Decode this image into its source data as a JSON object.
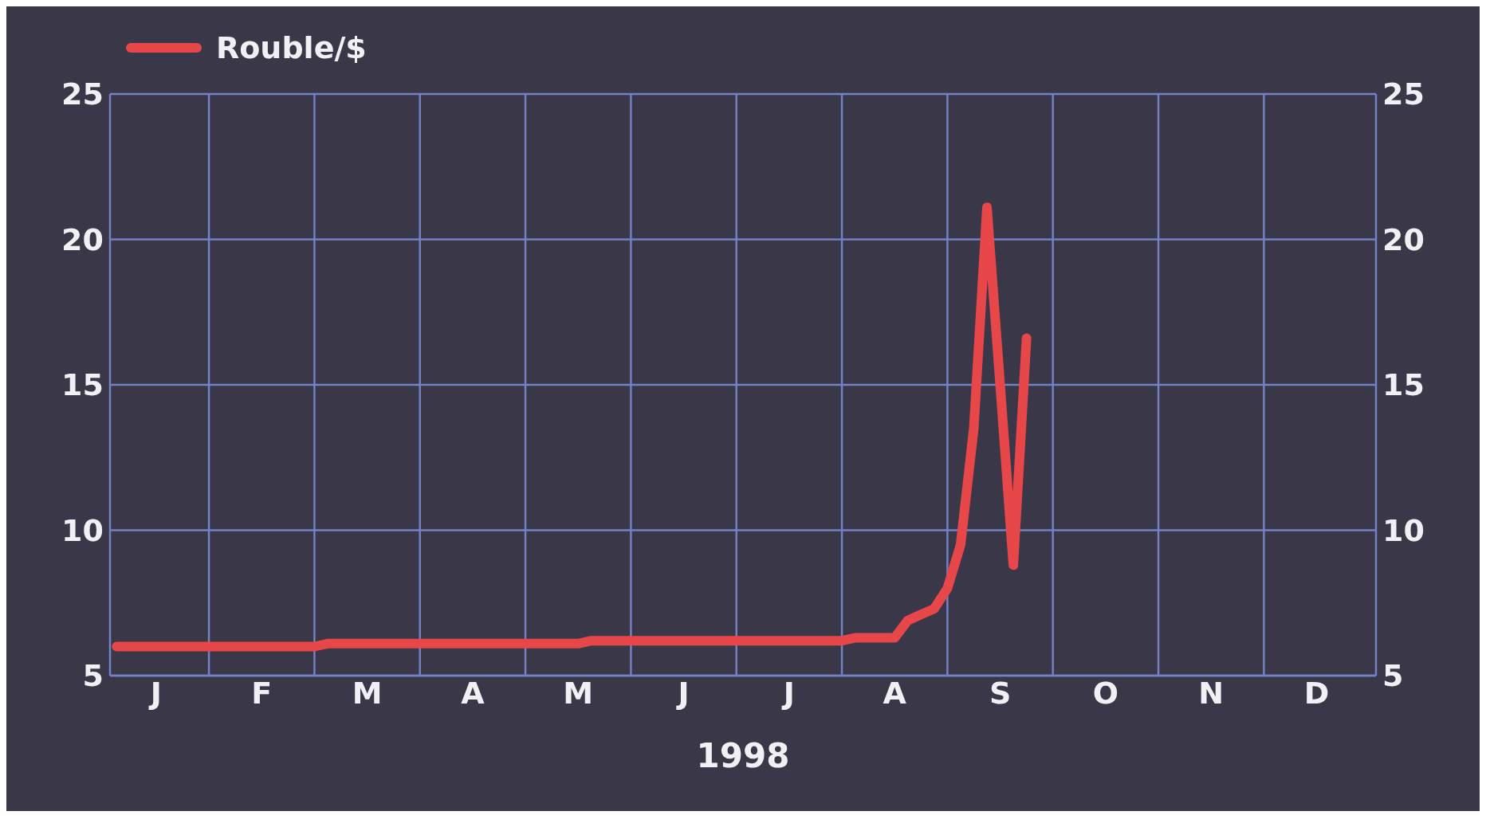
{
  "chart_data": {
    "type": "line",
    "xlabel": "1998",
    "categories": [
      null,
      null,
      null,
      "J",
      null,
      null,
      null,
      null,
      null,
      null,
      null,
      "F",
      null,
      null,
      null,
      null,
      null,
      null,
      null,
      "M",
      null,
      null,
      null,
      null,
      null,
      null,
      null,
      "A",
      null,
      null,
      null,
      null,
      null,
      null,
      null,
      "M",
      null,
      null,
      null,
      null,
      null,
      null,
      null,
      "J",
      null,
      null,
      null,
      null,
      null,
      null,
      null,
      "J",
      null,
      null,
      null,
      null,
      null,
      null,
      null,
      "A",
      null,
      null,
      null,
      null,
      null,
      null,
      null,
      "S",
      null,
      null,
      null,
      null,
      null,
      null,
      null,
      "O",
      null,
      null,
      null,
      null,
      null,
      null,
      null,
      "N",
      null,
      null,
      null,
      null,
      null,
      null,
      null,
      "D",
      null,
      null,
      null,
      null
    ],
    "series": [
      {
        "name": "Rouble/$",
        "color": "#e8474a",
        "values": [
          6.0,
          6.0,
          6.0,
          6.0,
          6.0,
          6.0,
          6.0,
          6.0,
          6.0,
          6.0,
          6.0,
          6.0,
          6.0,
          6.0,
          6.0,
          6.0,
          6.1,
          6.1,
          6.1,
          6.1,
          6.1,
          6.1,
          6.1,
          6.1,
          6.1,
          6.1,
          6.1,
          6.1,
          6.1,
          6.1,
          6.1,
          6.1,
          6.1,
          6.1,
          6.1,
          6.1,
          6.2,
          6.2,
          6.2,
          6.2,
          6.2,
          6.2,
          6.2,
          6.2,
          6.2,
          6.2,
          6.2,
          6.2,
          6.2,
          6.2,
          6.2,
          6.2,
          6.2,
          6.2,
          6.2,
          6.2,
          6.3,
          6.3,
          6.3,
          6.3,
          6.9,
          7.1,
          7.3,
          8.0,
          9.5,
          13.5,
          21.1,
          15.0,
          8.8,
          16.6,
          null,
          null,
          null,
          null,
          null,
          null,
          null,
          null,
          null,
          null,
          null,
          null,
          null,
          null,
          null,
          null,
          null,
          null,
          null,
          null,
          null,
          null,
          null,
          null,
          null,
          null
        ]
      }
    ],
    "ylim": [
      5,
      25
    ],
    "yticks": [
      5,
      10,
      15,
      20,
      25
    ],
    "y2lim": [
      5,
      25
    ],
    "y2ticks": [
      5,
      10,
      15,
      20,
      25
    ],
    "grid": true,
    "legend": "top left",
    "marker": "none",
    "line_style": "solid"
  }
}
